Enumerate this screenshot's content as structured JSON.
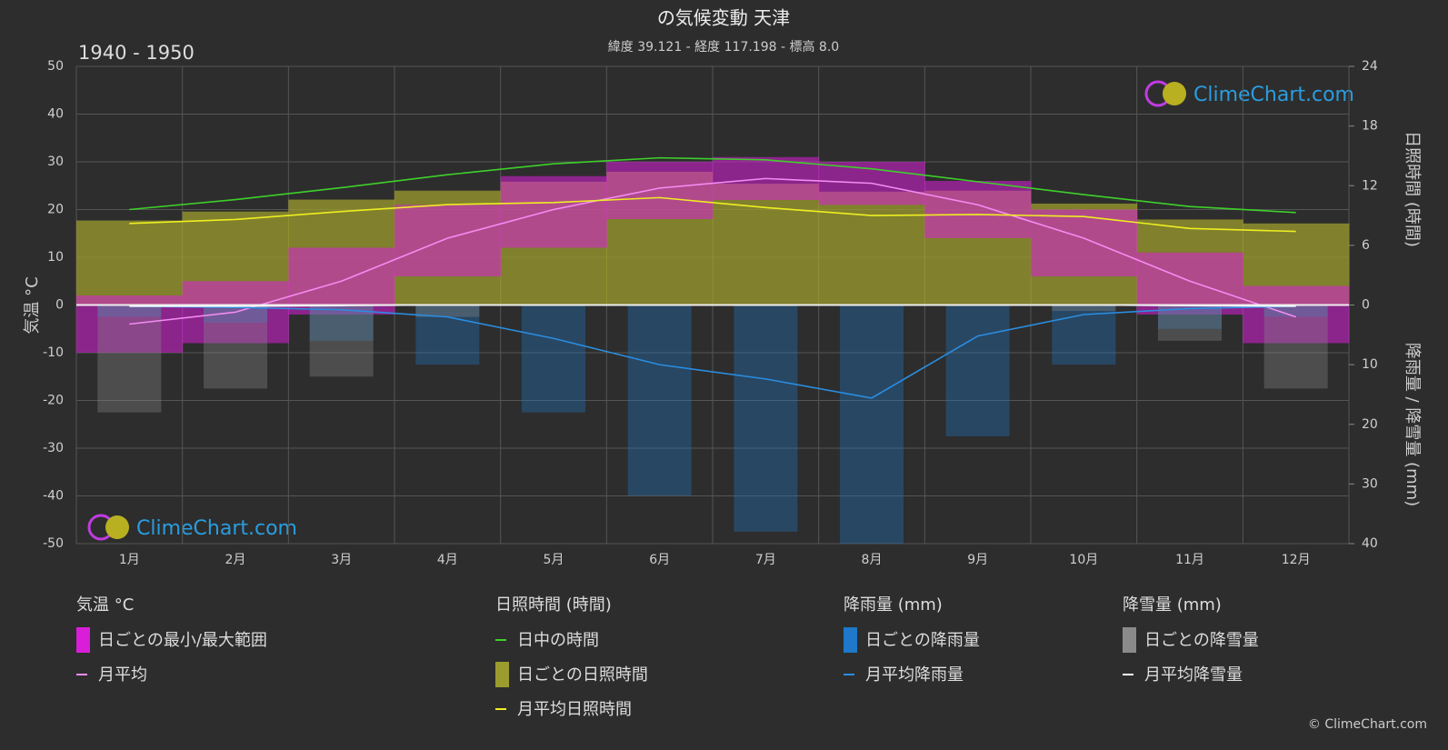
{
  "chart_data": {
    "type": "climate",
    "title": "の気候変動 天津",
    "subtitle": "緯度 39.121 - 経度 117.198 - 標高 8.0",
    "period": "1940 - 1950",
    "y_label": "気温 °C",
    "y2_label": "日照時間 (時間)",
    "y3_label": "降雨量 / 降雪量 (mm)",
    "watermark": "ClimeChart.com",
    "copyright": "© ClimeChart.com",
    "categories": [
      "1月",
      "2月",
      "3月",
      "4月",
      "5月",
      "6月",
      "7月",
      "8月",
      "9月",
      "10月",
      "11月",
      "12月"
    ],
    "ylim": [
      -50,
      50
    ],
    "yticks": [
      -50,
      -40,
      -30,
      -20,
      -10,
      0,
      10,
      20,
      30,
      40,
      50
    ],
    "y2lim": [
      0,
      24
    ],
    "y2ticks": [
      0,
      6,
      12,
      18,
      24
    ],
    "y3lim": [
      0,
      40
    ],
    "y3ticks": [
      0,
      10,
      20,
      30,
      40
    ],
    "grid": true,
    "groups": [
      {
        "title": "気温 °C",
        "series": [
          {
            "name": "日ごとの最小/最大範囲",
            "kind": "band",
            "axis": "y",
            "color": "#d81ed8",
            "low": [
              -10,
              -8,
              -2,
              6,
              12,
              18,
              22,
              21,
              14,
              6,
              -2,
              -8
            ],
            "values": [
              2,
              5,
              12,
              21,
              27,
              30,
              31,
              30,
              26,
              20,
              11,
              4
            ]
          },
          {
            "name": "月平均",
            "kind": "line",
            "axis": "y",
            "color": "#f28cf2",
            "values": [
              -4,
              -1.5,
              5,
              14,
              20,
              24.5,
              26.5,
              25.5,
              21,
              14,
              5,
              -2.5
            ]
          }
        ]
      },
      {
        "title": "日照時間 (時間)",
        "series": [
          {
            "name": "日中の時間",
            "kind": "line",
            "axis": "y2",
            "color": "#3ed02a",
            "values": [
              9.6,
              10.6,
              11.8,
              13.1,
              14.2,
              14.8,
              14.6,
              13.7,
              12.4,
              11.1,
              9.9,
              9.3
            ]
          },
          {
            "name": "日ごとの日照時間",
            "kind": "area",
            "axis": "y2",
            "color": "#9c9c2e",
            "values": [
              8.5,
              9.4,
              10.6,
              11.5,
              12.4,
              13.4,
              12.2,
              11.4,
              11.5,
              10.2,
              8.6,
              8.2
            ]
          },
          {
            "name": "月平均日照時間",
            "kind": "line",
            "axis": "y2",
            "color": "#eeee22",
            "values": [
              8.2,
              8.6,
              9.4,
              10.1,
              10.3,
              10.8,
              9.8,
              9.0,
              9.1,
              8.9,
              7.7,
              7.4
            ]
          }
        ]
      },
      {
        "title": "降雨量 (mm)",
        "series": [
          {
            "name": "日ごとの降雨量",
            "kind": "bars",
            "axis": "y3",
            "color": "#1f78c8",
            "values": [
              2,
              3,
              6,
              10,
              18,
              32,
              38,
              40,
              22,
              10,
              4,
              2
            ]
          },
          {
            "name": "月平均降雨量",
            "kind": "line",
            "axis": "y3",
            "color": "#2a8de0",
            "values": [
              0.2,
              0.4,
              0.8,
              2,
              5.6,
              10,
              12.4,
              15.6,
              5.2,
              1.6,
              0.6,
              0.2
            ]
          }
        ]
      },
      {
        "title": "降雪量 (mm)",
        "series": [
          {
            "name": "日ごとの降雪量",
            "kind": "bars",
            "axis": "y3",
            "color": "#8a8a8a",
            "values": [
              18,
              14,
              12,
              2,
              0,
              0,
              0,
              0,
              0,
              1,
              6,
              14
            ]
          },
          {
            "name": "月平均降雪量",
            "kind": "line",
            "axis": "y3",
            "color": "#ffffff",
            "values": [
              0.2,
              0.2,
              0.1,
              0,
              0,
              0,
              0,
              0,
              0,
              0,
              0.1,
              0.2
            ]
          }
        ]
      }
    ]
  }
}
